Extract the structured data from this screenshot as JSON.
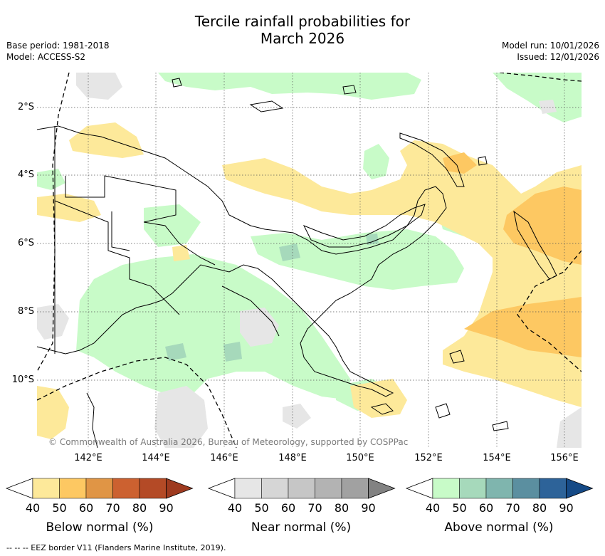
{
  "title_line1": "Tercile rainfall probabilities for",
  "title_line2": "March 2026",
  "meta_left": [
    "Base period: 1981-2018",
    "Model: ACCESS-S2"
  ],
  "meta_right": [
    "Model run: 10/01/2026",
    "Issued: 12/01/2026"
  ],
  "lat_labels": [
    "2°S",
    "4°S",
    "6°S",
    "8°S",
    "10°S"
  ],
  "lon_labels": [
    "142°E",
    "144°E",
    "146°E",
    "148°E",
    "150°E",
    "152°E",
    "154°E",
    "156°E"
  ],
  "copyright": "© Commonwealth of Australia 2026, Bureau of Meteorology, supported by COSPPac",
  "colorbars": [
    {
      "title": "Below normal (%)",
      "ticks": [
        "40",
        "50",
        "60",
        "70",
        "80",
        "90"
      ],
      "colors": [
        "#ffffff",
        "#fde99a",
        "#fdc862",
        "#e09545",
        "#cc6130",
        "#b44a26",
        "#9e3a1f"
      ]
    },
    {
      "title": "Near normal (%)",
      "ticks": [
        "40",
        "50",
        "60",
        "70",
        "80",
        "90"
      ],
      "colors": [
        "#ffffff",
        "#e6e6e6",
        "#d6d6d6",
        "#c6c6c6",
        "#b3b3b3",
        "#a1a1a1",
        "#828282"
      ]
    },
    {
      "title": "Above normal (%)",
      "ticks": [
        "40",
        "50",
        "60",
        "70",
        "80",
        "90"
      ],
      "colors": [
        "#ffffff",
        "#c8fbc8",
        "#a6d9bb",
        "#7fb5ae",
        "#5b8fa0",
        "#2d6399",
        "#154a86"
      ]
    }
  ],
  "footer": "--  --  -- EEZ border V11 (Flanders Marine Institute, 2019).",
  "palette": {
    "below_50": "#fde99a",
    "below_60": "#fdc862",
    "near_50": "#e6e6e6",
    "above_50": "#c8fbc8",
    "above_60": "#a6d9bb"
  }
}
